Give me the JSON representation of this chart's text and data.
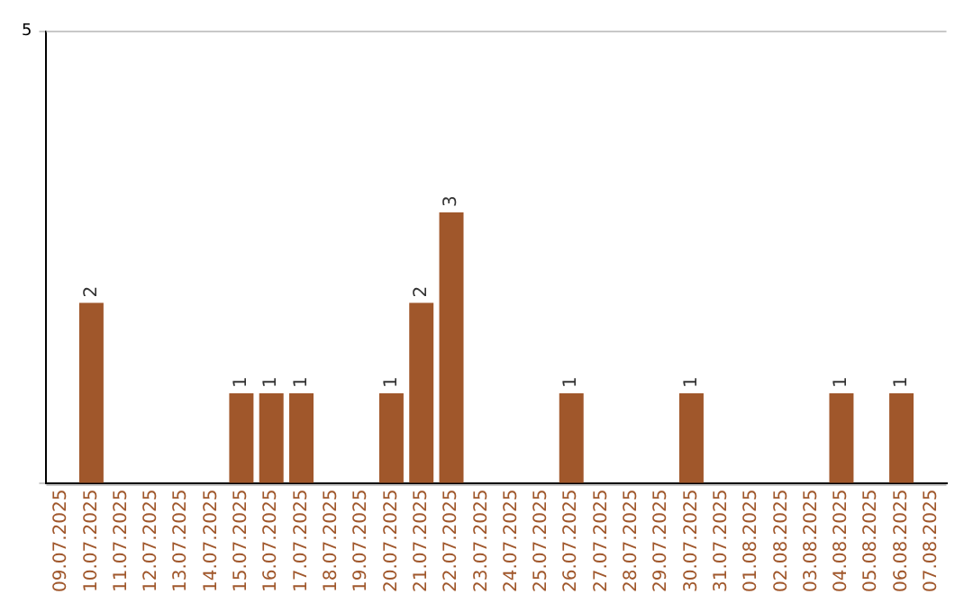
{
  "chart_data": {
    "type": "bar",
    "categories": [
      "09.07.2025",
      "10.07.2025",
      "11.07.2025",
      "12.07.2025",
      "13.07.2025",
      "14.07.2025",
      "15.07.2025",
      "16.07.2025",
      "17.07.2025",
      "18.07.2025",
      "19.07.2025",
      "20.07.2025",
      "21.07.2025",
      "22.07.2025",
      "23.07.2025",
      "24.07.2025",
      "25.07.2025",
      "26.07.2025",
      "27.07.2025",
      "28.07.2025",
      "29.07.2025",
      "30.07.2025",
      "31.07.2025",
      "01.08.2025",
      "02.08.2025",
      "03.08.2025",
      "04.08.2025",
      "05.08.2025",
      "06.08.2025",
      "07.08.2025"
    ],
    "values": [
      0,
      2,
      0,
      0,
      0,
      0,
      1,
      1,
      1,
      0,
      0,
      1,
      2,
      3,
      0,
      0,
      0,
      1,
      0,
      0,
      0,
      1,
      0,
      0,
      0,
      0,
      1,
      0,
      1,
      0
    ],
    "value_labels": [
      null,
      "2",
      null,
      null,
      null,
      null,
      "1",
      "1",
      "1",
      null,
      null,
      "1",
      "2",
      "3",
      null,
      null,
      null,
      "1",
      null,
      null,
      null,
      "1",
      null,
      null,
      null,
      null,
      "1",
      null,
      "1",
      null
    ],
    "color": "#a0572b",
    "ylim": [
      0,
      5
    ],
    "yticks": [
      {
        "value": 0,
        "label": null
      },
      5
    ],
    "grid": "y"
  }
}
